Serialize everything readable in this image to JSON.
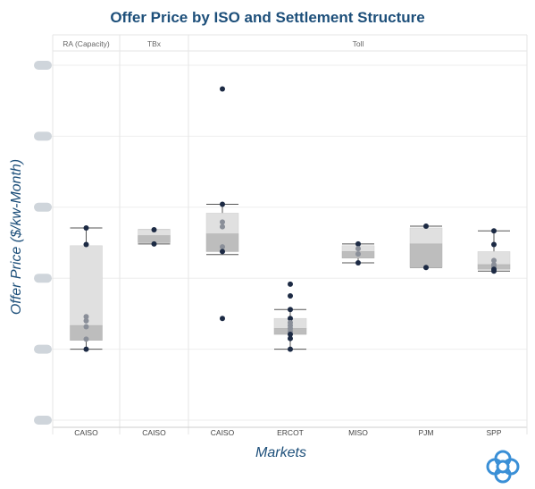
{
  "title": "Offer Price by ISO and Settlement Structure",
  "colors": {
    "title": "#1d4f7a",
    "point": "#1c2a44",
    "point_faded": "#8a8f99",
    "box_light": "#e0e0e0",
    "box_dark": "#bdbdbd",
    "grid": "#eeeeee",
    "panel_divider": "#e6e6e6",
    "tick_pill": "#cfd5db",
    "logo": "#3a8fd6"
  },
  "chart_data": {
    "type": "box",
    "title": "Offer Price by ISO and Settlement Structure",
    "xlabel": "Markets",
    "ylabel": "Offer Price ($/kw-Month)",
    "y_tick_labels_redacted": true,
    "ylim": [
      0,
      6
    ],
    "panels": [
      {
        "name": "RA (Capacity)",
        "categories": [
          "CAISO"
        ]
      },
      {
        "name": "TBx",
        "categories": [
          "CAISO"
        ]
      },
      {
        "name": "Toll",
        "categories": [
          "CAISO",
          "ERCOT",
          "MISO",
          "PJM",
          "SPP"
        ]
      }
    ],
    "boxes": [
      {
        "panel": "RA (Capacity)",
        "category": "CAISO",
        "min": 1.2,
        "q1": 1.35,
        "median": 1.6,
        "q3": 2.95,
        "max": 3.25,
        "points": [
          3.25,
          2.97,
          1.75,
          1.68,
          1.58,
          1.37,
          1.2
        ]
      },
      {
        "panel": "TBx",
        "category": "CAISO",
        "min": 2.98,
        "q1": 3.0,
        "median": 3.12,
        "q3": 3.22,
        "max": 3.22,
        "points": [
          3.22,
          2.98
        ]
      },
      {
        "panel": "Toll",
        "category": "CAISO",
        "min": 2.8,
        "q1": 2.85,
        "median": 3.15,
        "q3": 3.5,
        "max": 3.65,
        "points": [
          5.6,
          3.65,
          3.35,
          3.27,
          2.93,
          2.85,
          1.72
        ]
      },
      {
        "panel": "Toll",
        "category": "ERCOT",
        "min": 1.2,
        "q1": 1.45,
        "median": 1.55,
        "q3": 1.72,
        "max": 1.87,
        "points": [
          2.3,
          2.1,
          1.87,
          1.72,
          1.65,
          1.6,
          1.55,
          1.5,
          1.45,
          1.38,
          1.2
        ]
      },
      {
        "panel": "Toll",
        "category": "MISO",
        "min": 2.66,
        "q1": 2.74,
        "median": 2.85,
        "q3": 2.95,
        "max": 2.98,
        "points": [
          2.98,
          2.9,
          2.81,
          2.66
        ]
      },
      {
        "panel": "Toll",
        "category": "PJM",
        "min": 2.58,
        "q1": 2.58,
        "median": 2.98,
        "q3": 3.25,
        "max": 3.28,
        "points": [
          3.28,
          2.58
        ]
      },
      {
        "panel": "Toll",
        "category": "SPP",
        "min": 2.52,
        "q1": 2.55,
        "median": 2.63,
        "q3": 2.85,
        "max": 3.2,
        "points": [
          3.2,
          2.97,
          2.7,
          2.63,
          2.6,
          2.55,
          2.52
        ]
      }
    ]
  },
  "logo": {
    "name": "logo-icon"
  }
}
